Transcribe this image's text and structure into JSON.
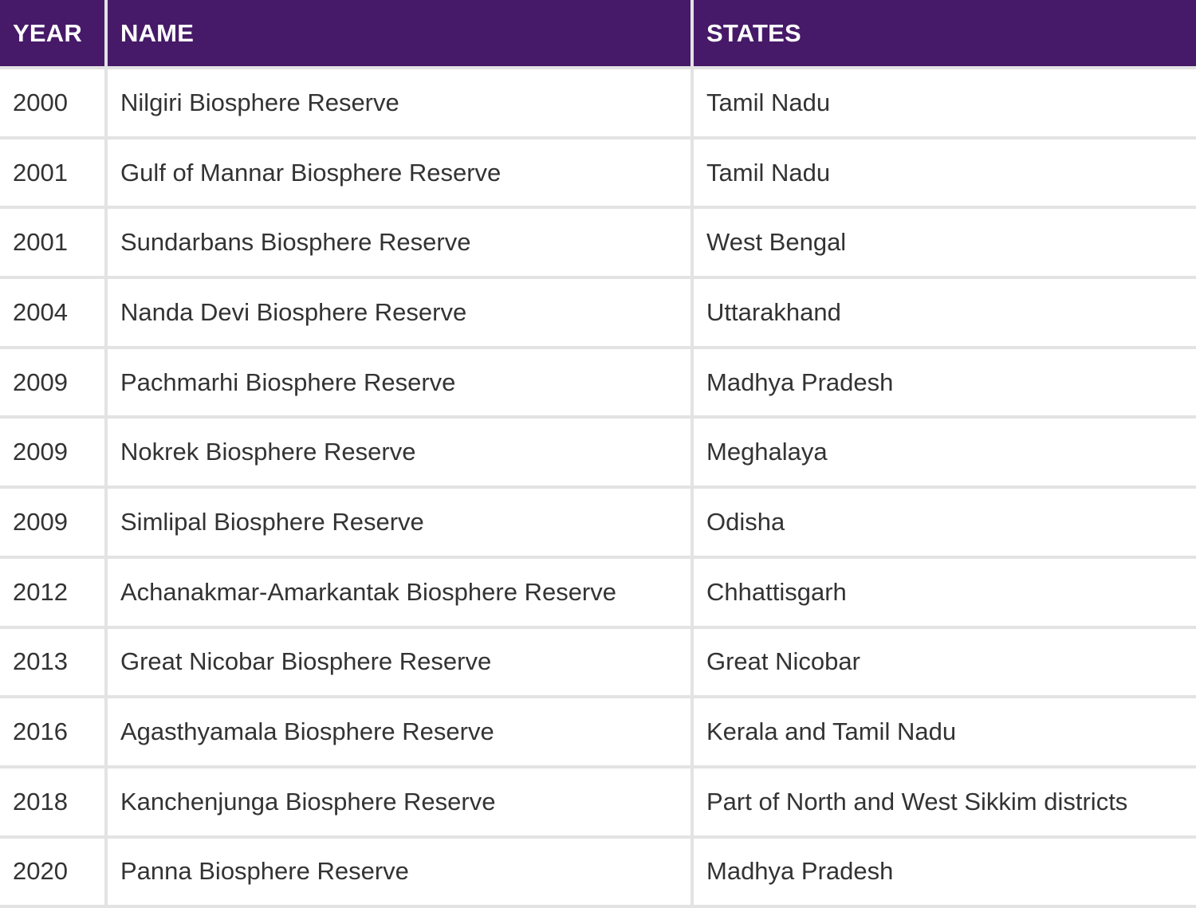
{
  "table": {
    "headers": {
      "year": "YEAR",
      "name": "NAME",
      "states": "STATES"
    },
    "rows": [
      {
        "year": "2000",
        "name": "Nilgiri Biosphere Reserve",
        "states": "Tamil Nadu"
      },
      {
        "year": "2001",
        "name": "Gulf of Mannar Biosphere Reserve",
        "states": "Tamil Nadu"
      },
      {
        "year": "2001",
        "name": "Sundarbans Biosphere Reserve",
        "states": "West Bengal"
      },
      {
        "year": "2004",
        "name": "Nanda Devi Biosphere Reserve",
        "states": "Uttarakhand"
      },
      {
        "year": "2009",
        "name": "Pachmarhi Biosphere Reserve",
        "states": "Madhya Pradesh"
      },
      {
        "year": "2009",
        "name": "Nokrek Biosphere Reserve",
        "states": "Meghalaya"
      },
      {
        "year": "2009",
        "name": "Simlipal Biosphere Reserve",
        "states": "Odisha"
      },
      {
        "year": "2012",
        "name": "Achanakmar-Amarkantak Biosphere Reserve",
        "states": "Chhattisgarh"
      },
      {
        "year": "2013",
        "name": "Great Nicobar Biosphere Reserve",
        "states": "Great Nicobar"
      },
      {
        "year": "2016",
        "name": "Agasthyamala Biosphere Reserve",
        "states": "Kerala and Tamil Nadu"
      },
      {
        "year": "2018",
        "name": "Kanchenjunga Biosphere Reserve",
        "states": "Part of North and West Sikkim districts"
      },
      {
        "year": "2020",
        "name": "Panna Biosphere Reserve",
        "states": "Madhya Pradesh"
      }
    ]
  },
  "colors": {
    "header_bg": "#461a68",
    "header_text": "#ffffff",
    "border": "#e3e3e3",
    "cell_text": "#333333"
  }
}
